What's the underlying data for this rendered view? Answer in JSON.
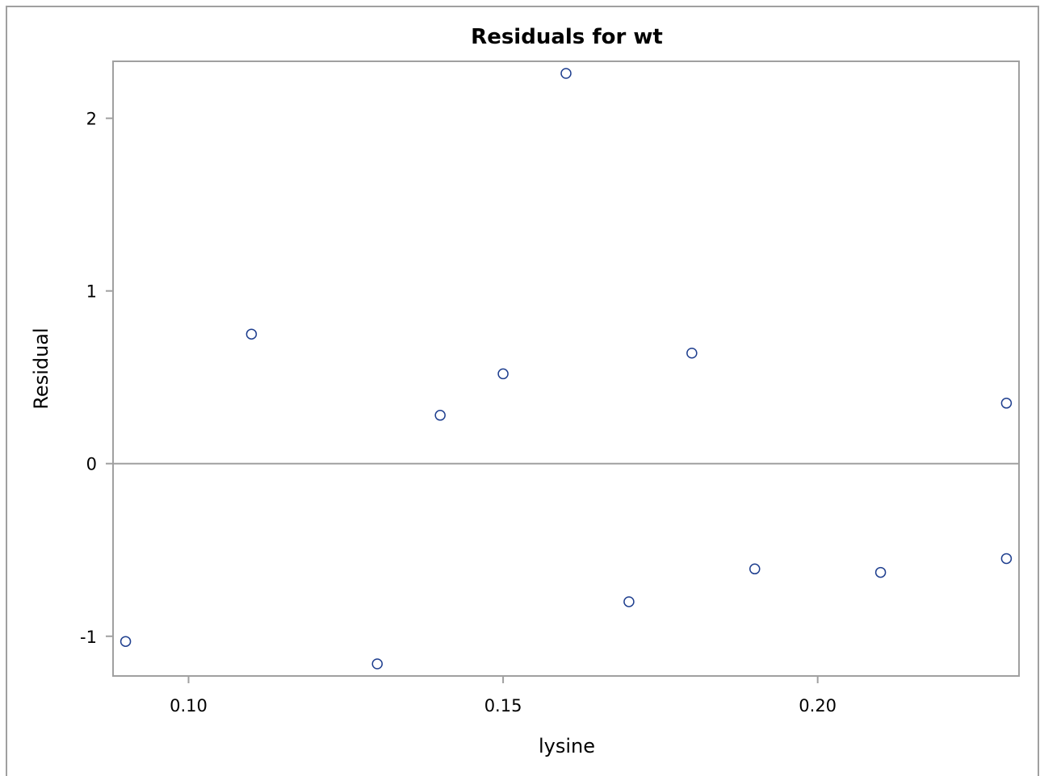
{
  "chart_data": {
    "type": "scatter",
    "title": "Residuals for wt",
    "xlabel": "lysine",
    "ylabel": "Residual",
    "xlim": [
      0.088,
      0.232
    ],
    "ylim": [
      -1.23,
      2.33
    ],
    "xticks": [
      0.1,
      0.15,
      0.2
    ],
    "xtick_labels": [
      "0.10",
      "0.15",
      "0.20"
    ],
    "yticks": [
      -1,
      0,
      1,
      2
    ],
    "ytick_labels": [
      "-1",
      "0",
      "1",
      "2"
    ],
    "reference_line_y": 0,
    "grid": false,
    "legend": "none",
    "series": [
      {
        "x": [
          0.09,
          0.11,
          0.13,
          0.14,
          0.15,
          0.16,
          0.17,
          0.18,
          0.19,
          0.21,
          0.23,
          0.23
        ],
        "y": [
          -1.03,
          0.75,
          -1.16,
          0.28,
          0.52,
          2.26,
          -0.8,
          0.64,
          -0.61,
          -0.63,
          0.35,
          -0.55
        ]
      }
    ],
    "colors": {
      "marker": "#1f3f8f",
      "axis": "#a0a0a0",
      "reference_line": "#a0a0a0",
      "text": "#000000"
    }
  }
}
